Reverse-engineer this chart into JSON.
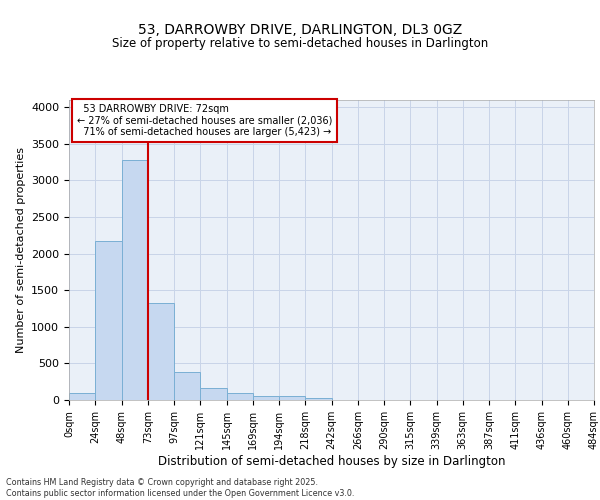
{
  "title_line1": "53, DARROWBY DRIVE, DARLINGTON, DL3 0GZ",
  "title_line2": "Size of property relative to semi-detached houses in Darlington",
  "xlabel": "Distribution of semi-detached houses by size in Darlington",
  "ylabel": "Number of semi-detached properties",
  "property_label": "53 DARROWBY DRIVE: 72sqm",
  "pct_smaller": 27,
  "pct_larger": 71,
  "count_smaller": 2036,
  "count_larger": 5423,
  "bin_labels": [
    "0sqm",
    "24sqm",
    "48sqm",
    "73sqm",
    "97sqm",
    "121sqm",
    "145sqm",
    "169sqm",
    "194sqm",
    "218sqm",
    "242sqm",
    "266sqm",
    "290sqm",
    "315sqm",
    "339sqm",
    "363sqm",
    "387sqm",
    "411sqm",
    "436sqm",
    "460sqm",
    "484sqm"
  ],
  "bar_heights": [
    100,
    2175,
    3275,
    1325,
    380,
    165,
    100,
    60,
    50,
    25,
    0,
    0,
    0,
    0,
    0,
    0,
    0,
    0,
    0,
    0
  ],
  "bar_color": "#c6d8f0",
  "bar_edge_color": "#7aafd4",
  "grid_color": "#c8d4e8",
  "background_color": "#eaf0f8",
  "vline_x_index": 3,
  "vline_color": "#cc0000",
  "box_edge_color": "#cc0000",
  "ylim": [
    0,
    4100
  ],
  "yticks": [
    0,
    500,
    1000,
    1500,
    2000,
    2500,
    3000,
    3500,
    4000
  ],
  "footer_line1": "Contains HM Land Registry data © Crown copyright and database right 2025.",
  "footer_line2": "Contains public sector information licensed under the Open Government Licence v3.0."
}
